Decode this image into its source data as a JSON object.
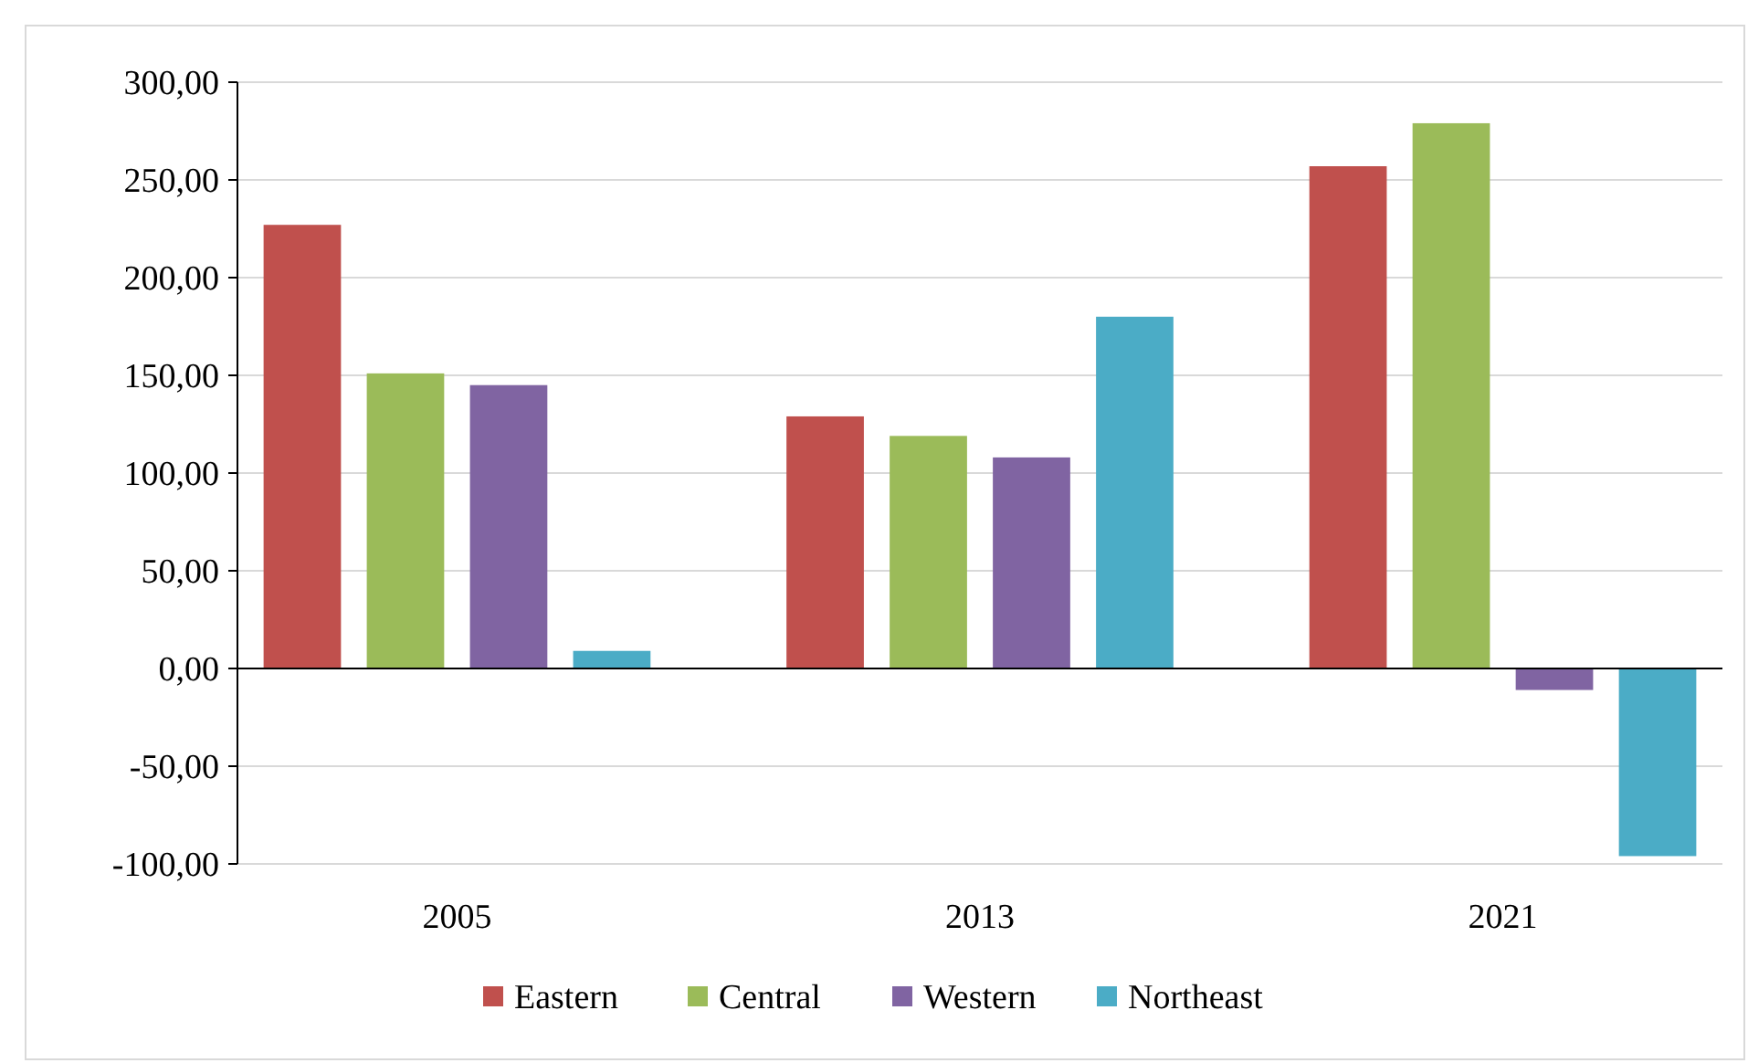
{
  "chart_data": {
    "type": "bar",
    "categories": [
      "2005",
      "2013",
      "2021"
    ],
    "series": [
      {
        "name": "Eastern",
        "color": "#c0504d",
        "values": [
          227,
          129,
          257
        ]
      },
      {
        "name": "Central",
        "color": "#9bbb59",
        "values": [
          151,
          119,
          279
        ]
      },
      {
        "name": "Western",
        "color": "#8064a2",
        "values": [
          145,
          108,
          -11
        ]
      },
      {
        "name": "Northeast",
        "color": "#4bacc6",
        "values": [
          9,
          180,
          -96
        ]
      }
    ],
    "ylim": [
      -100,
      300
    ],
    "yticks": [
      {
        "value": -100,
        "label": "-100,00"
      },
      {
        "value": -50,
        "label": "-50,00"
      },
      {
        "value": 0,
        "label": "0,00"
      },
      {
        "value": 50,
        "label": "50,00"
      },
      {
        "value": 100,
        "label": "100,00"
      },
      {
        "value": 150,
        "label": "150,00"
      },
      {
        "value": 200,
        "label": "200,00"
      },
      {
        "value": 250,
        "label": "250,00"
      },
      {
        "value": 300,
        "label": "300,00"
      }
    ],
    "grid": "y",
    "legend": "bottom"
  }
}
